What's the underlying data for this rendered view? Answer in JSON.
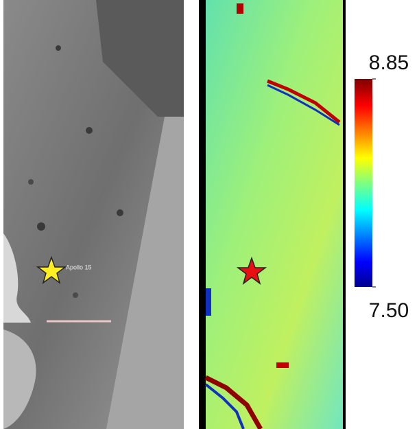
{
  "image_label": "Apollo 15",
  "colorbar": {
    "type": "colorbar",
    "ylim": [
      7.5,
      8.85
    ],
    "yticks": [
      {
        "value": 7.5,
        "label": "7.50"
      },
      8.85
    ]
  }
}
